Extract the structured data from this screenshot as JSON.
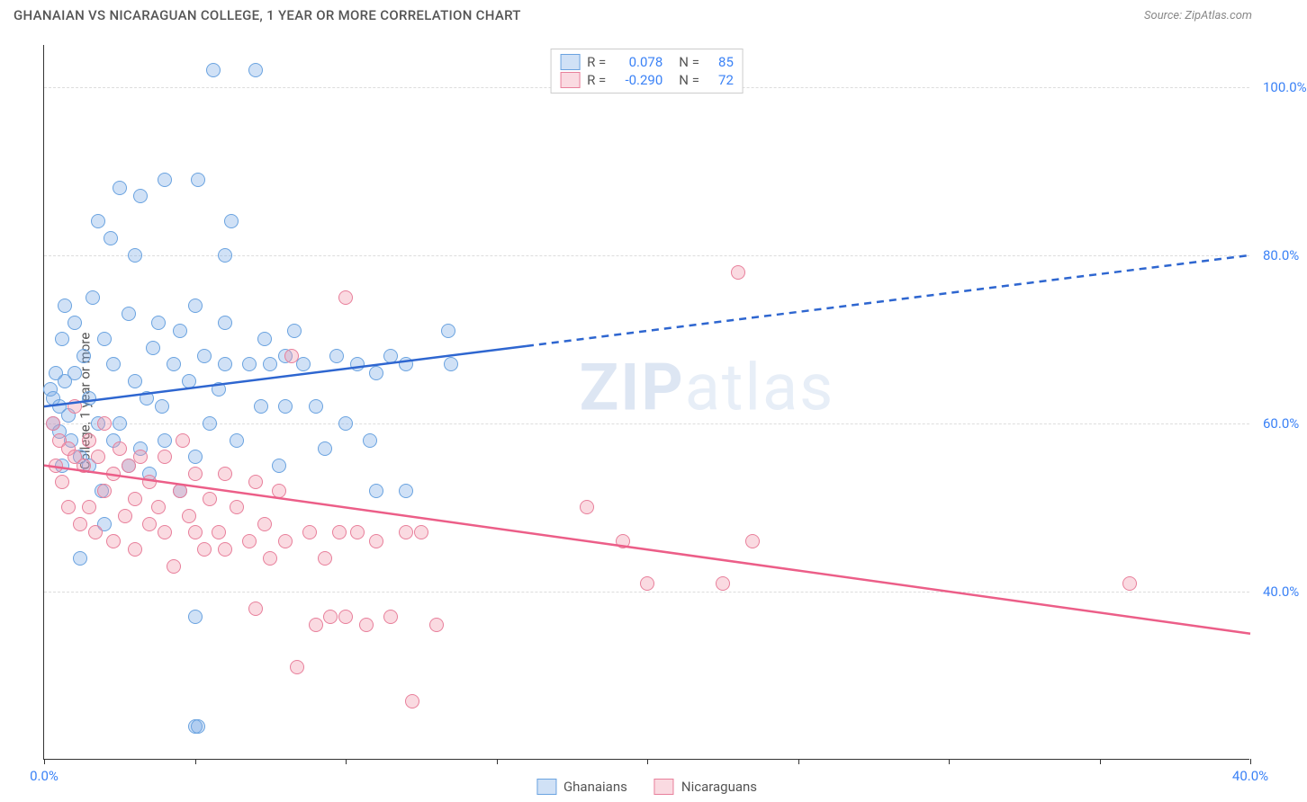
{
  "title": "GHANAIAN VS NICARAGUAN COLLEGE, 1 YEAR OR MORE CORRELATION CHART",
  "source": "Source: ZipAtlas.com",
  "watermark_a": "ZIP",
  "watermark_b": "atlas",
  "chart": {
    "type": "scatter",
    "y_axis_label": "College, 1 year or more",
    "xlim": [
      0,
      40
    ],
    "ylim": [
      20,
      105
    ],
    "x_ticks": [
      0,
      5,
      10,
      15,
      20,
      25,
      30,
      35,
      40
    ],
    "x_tick_labels": {
      "0": "0.0%",
      "40": "40.0%"
    },
    "y_ticks": [
      40,
      60,
      80,
      100
    ],
    "y_tick_labels": {
      "40": "40.0%",
      "60": "60.0%",
      "80": "80.0%",
      "100": "100.0%"
    },
    "grid_color": "#dddddd",
    "background_color": "#ffffff",
    "marker_radius": 8,
    "marker_stroke_width": 1.5,
    "series": [
      {
        "name": "Ghanaians",
        "fill": "rgba(120,170,230,0.35)",
        "stroke": "#6aa3e0",
        "R": "0.078",
        "N": "85",
        "trend": {
          "x1": 0,
          "y1": 62,
          "x2": 40,
          "y2": 80,
          "solid_until_x": 16,
          "color": "#2e66d0",
          "width": 2.5
        },
        "points": [
          [
            0.2,
            64
          ],
          [
            0.3,
            63
          ],
          [
            0.3,
            60
          ],
          [
            0.4,
            66
          ],
          [
            0.5,
            62
          ],
          [
            0.5,
            59
          ],
          [
            0.6,
            70
          ],
          [
            0.6,
            55
          ],
          [
            0.7,
            65
          ],
          [
            0.7,
            74
          ],
          [
            0.8,
            61
          ],
          [
            0.9,
            58
          ],
          [
            1.0,
            72
          ],
          [
            1.0,
            66
          ],
          [
            1.2,
            44
          ],
          [
            1.2,
            56
          ],
          [
            1.3,
            68
          ],
          [
            1.5,
            55
          ],
          [
            1.5,
            63
          ],
          [
            1.6,
            75
          ],
          [
            1.8,
            60
          ],
          [
            1.8,
            84
          ],
          [
            1.9,
            52
          ],
          [
            2.0,
            70
          ],
          [
            2.0,
            48
          ],
          [
            2.2,
            82
          ],
          [
            2.3,
            67
          ],
          [
            2.3,
            58
          ],
          [
            2.5,
            88
          ],
          [
            2.5,
            60
          ],
          [
            2.8,
            55
          ],
          [
            2.8,
            73
          ],
          [
            3.0,
            65
          ],
          [
            3.0,
            80
          ],
          [
            3.2,
            57
          ],
          [
            3.2,
            87
          ],
          [
            3.4,
            63
          ],
          [
            3.5,
            54
          ],
          [
            3.6,
            69
          ],
          [
            3.8,
            72
          ],
          [
            3.9,
            62
          ],
          [
            4.0,
            89
          ],
          [
            4.0,
            58
          ],
          [
            4.3,
            67
          ],
          [
            4.5,
            71
          ],
          [
            4.5,
            52
          ],
          [
            4.8,
            65
          ],
          [
            5.0,
            74
          ],
          [
            5.0,
            56
          ],
          [
            5.0,
            24
          ],
          [
            5.1,
            89
          ],
          [
            5.3,
            68
          ],
          [
            5.5,
            60
          ],
          [
            5.6,
            102
          ],
          [
            5.8,
            64
          ],
          [
            6.0,
            72
          ],
          [
            6.0,
            67
          ],
          [
            6.0,
            80
          ],
          [
            6.2,
            84
          ],
          [
            6.4,
            58
          ],
          [
            6.8,
            67
          ],
          [
            7.0,
            102
          ],
          [
            7.2,
            62
          ],
          [
            7.3,
            70
          ],
          [
            7.5,
            67
          ],
          [
            7.8,
            55
          ],
          [
            8.0,
            62
          ],
          [
            8.0,
            68
          ],
          [
            8.3,
            71
          ],
          [
            8.6,
            67
          ],
          [
            9.0,
            62
          ],
          [
            9.3,
            57
          ],
          [
            9.7,
            68
          ],
          [
            10.0,
            60
          ],
          [
            10.4,
            67
          ],
          [
            10.8,
            58
          ],
          [
            11.0,
            66
          ],
          [
            11.0,
            52
          ],
          [
            11.5,
            68
          ],
          [
            12.0,
            52
          ],
          [
            12.0,
            67
          ],
          [
            13.4,
            71
          ],
          [
            13.5,
            67
          ],
          [
            5.0,
            37
          ],
          [
            5.1,
            24
          ]
        ]
      },
      {
        "name": "Nicaraguans",
        "fill": "rgba(240,150,170,0.35)",
        "stroke": "#e87f9b",
        "R": "-0.290",
        "N": "72",
        "trend": {
          "x1": 0,
          "y1": 55,
          "x2": 40,
          "y2": 35,
          "solid_until_x": 40,
          "color": "#ec5e88",
          "width": 2.5
        },
        "points": [
          [
            0.3,
            60
          ],
          [
            0.4,
            55
          ],
          [
            0.5,
            58
          ],
          [
            0.6,
            53
          ],
          [
            0.8,
            57
          ],
          [
            0.8,
            50
          ],
          [
            1.0,
            56
          ],
          [
            1.0,
            62
          ],
          [
            1.2,
            48
          ],
          [
            1.3,
            55
          ],
          [
            1.5,
            58
          ],
          [
            1.5,
            50
          ],
          [
            1.7,
            47
          ],
          [
            1.8,
            56
          ],
          [
            2.0,
            52
          ],
          [
            2.0,
            60
          ],
          [
            2.3,
            54
          ],
          [
            2.3,
            46
          ],
          [
            2.5,
            57
          ],
          [
            2.7,
            49
          ],
          [
            2.8,
            55
          ],
          [
            3.0,
            51
          ],
          [
            3.0,
            45
          ],
          [
            3.2,
            56
          ],
          [
            3.5,
            48
          ],
          [
            3.5,
            53
          ],
          [
            3.8,
            50
          ],
          [
            4.0,
            47
          ],
          [
            4.0,
            56
          ],
          [
            4.3,
            43
          ],
          [
            4.5,
            52
          ],
          [
            4.6,
            58
          ],
          [
            4.8,
            49
          ],
          [
            5.0,
            47
          ],
          [
            5.0,
            54
          ],
          [
            5.3,
            45
          ],
          [
            5.5,
            51
          ],
          [
            5.8,
            47
          ],
          [
            6.0,
            54
          ],
          [
            6.0,
            45
          ],
          [
            6.4,
            50
          ],
          [
            6.8,
            46
          ],
          [
            7.0,
            53
          ],
          [
            7.0,
            38
          ],
          [
            7.3,
            48
          ],
          [
            7.5,
            44
          ],
          [
            7.8,
            52
          ],
          [
            8.0,
            46
          ],
          [
            8.4,
            31
          ],
          [
            8.8,
            47
          ],
          [
            9.0,
            36
          ],
          [
            9.3,
            44
          ],
          [
            9.5,
            37
          ],
          [
            9.8,
            47
          ],
          [
            10.0,
            75
          ],
          [
            10.0,
            37
          ],
          [
            10.4,
            47
          ],
          [
            10.7,
            36
          ],
          [
            11.0,
            46
          ],
          [
            11.5,
            37
          ],
          [
            12.2,
            27
          ],
          [
            12.5,
            47
          ],
          [
            13.0,
            36
          ],
          [
            12.0,
            47
          ],
          [
            18.0,
            50
          ],
          [
            19.2,
            46
          ],
          [
            20.0,
            41
          ],
          [
            22.5,
            41
          ],
          [
            23.0,
            78
          ],
          [
            23.5,
            46
          ],
          [
            36.0,
            41
          ],
          [
            8.2,
            68
          ]
        ]
      }
    ]
  },
  "legend": {
    "top": [
      {
        "series_index": 0,
        "R_label": "R =",
        "N_label": "N ="
      },
      {
        "series_index": 1,
        "R_label": "R =",
        "N_label": "N ="
      }
    ],
    "bottom": [
      {
        "series_index": 0
      },
      {
        "series_index": 1
      }
    ]
  }
}
